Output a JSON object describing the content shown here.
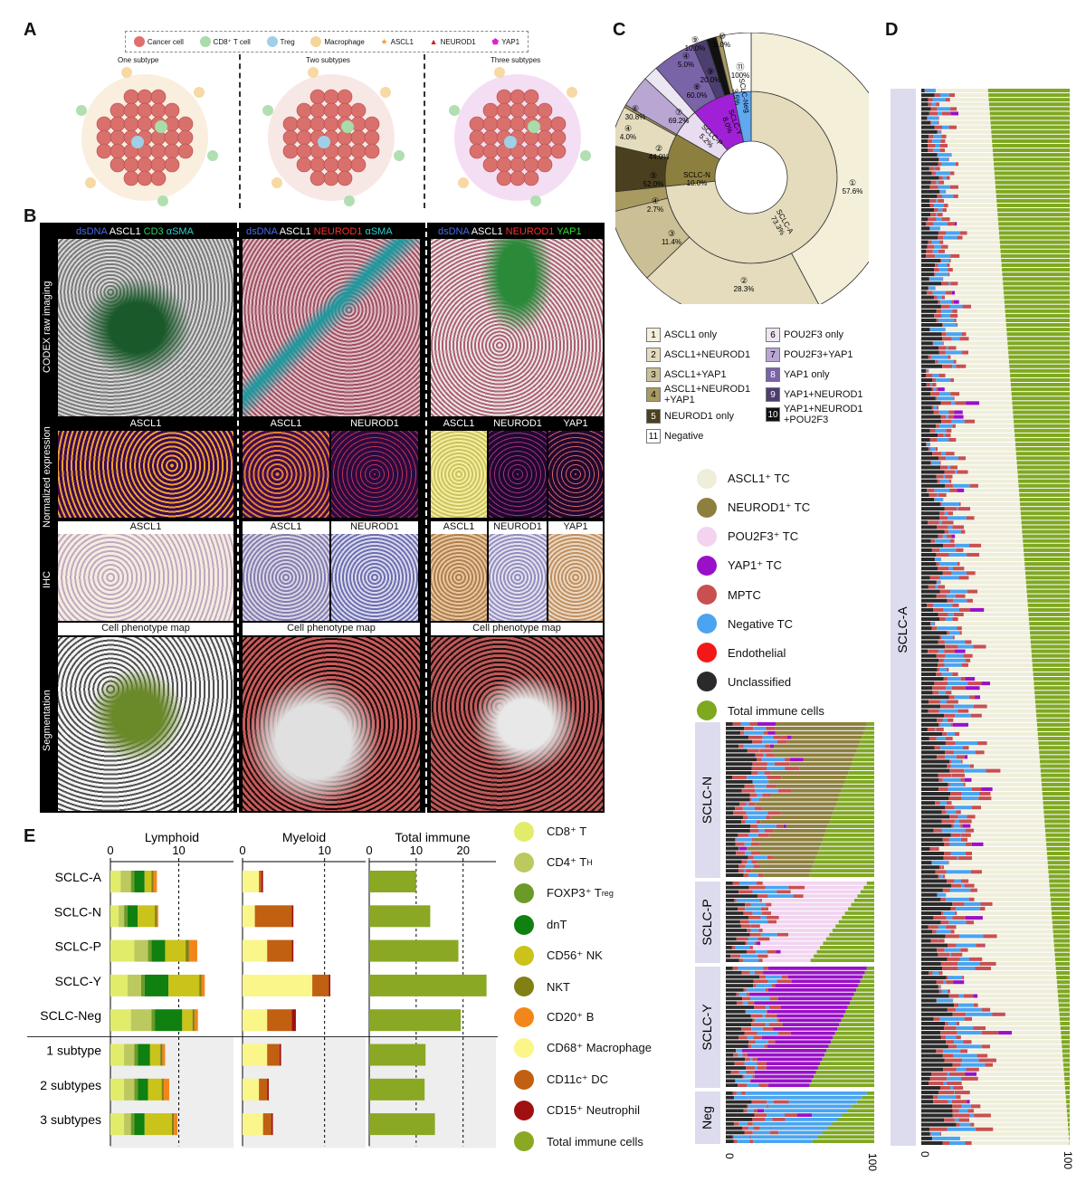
{
  "panel_labels": {
    "a": "A",
    "b": "B",
    "c": "C",
    "d": "D",
    "e": "E"
  },
  "panelA": {
    "legend": [
      {
        "label": "Cancer cell",
        "color": "#e0706f",
        "shape": "circle"
      },
      {
        "label": "CD8⁺ T cell",
        "color": "#a8dca8",
        "shape": "circle"
      },
      {
        "label": "Treg",
        "color": "#9fd0e8",
        "shape": "circle"
      },
      {
        "label": "Macrophage",
        "color": "#f6d59a",
        "shape": "circle"
      },
      {
        "label": "ASCL1",
        "color": "#f0a030",
        "shape": "star"
      },
      {
        "label": "NEUROD1",
        "color": "#d02020",
        "shape": "triangle"
      },
      {
        "label": "YAP1",
        "color": "#e020d0",
        "shape": "pentagon"
      }
    ],
    "titles": [
      "One subtype",
      "Two subtypes",
      "Three subtypes"
    ]
  },
  "panelB": {
    "col1_header": [
      "dsDNA",
      "ASCL1",
      "CD3",
      "αSMA"
    ],
    "col2_header": [
      "dsDNA",
      "ASCL1",
      "NEUROD1",
      "αSMA"
    ],
    "col3_header": [
      "dsDNA",
      "ASCL1",
      "NEUROD1",
      "YAP1"
    ],
    "header_colors": [
      "#4a6cf0",
      "#ffffff",
      "#30d060",
      "#30d0d0",
      "#ff3030",
      "#30e030"
    ],
    "row_labels": [
      "CODEX raw imaging",
      "Normalized expression",
      "IHC",
      "Segmentation"
    ],
    "col1_markers": [
      "ASCL1"
    ],
    "col2_markers": [
      "ASCL1",
      "NEUROD1"
    ],
    "col3_markers": [
      "ASCL1",
      "NEUROD1",
      "YAP1"
    ],
    "phenotype_map": "Cell phenotype map"
  },
  "panelC": {
    "inner": [
      {
        "label": "SCLC-A",
        "value": "73.3%"
      },
      {
        "label": "SCLC-N",
        "value": "10.0%"
      },
      {
        "label": "SCLC-P",
        "value": "5.2%"
      },
      {
        "label": "SCLC-Y",
        "value": "8.0%"
      },
      {
        "label": "SCLC-Neg",
        "value": "3.5%"
      }
    ],
    "outer_pct": [
      "57.6%",
      "28.3%",
      "11.4%",
      "2.7%",
      "52.0%",
      "44.0%",
      "4.0%",
      "69.2%",
      "60.0%",
      "20.0%",
      "100%",
      "30.8%",
      "10.0%",
      "5.0%",
      "5.0%"
    ],
    "outer_num": [
      "①",
      "②",
      "③",
      "④",
      "⑤",
      "②",
      "④",
      "⑦",
      "⑧",
      "⑨",
      "⑪",
      "⑥",
      "⑨",
      "⑩",
      "④"
    ],
    "legend": [
      {
        "num": "1",
        "label": "ASCL1 only",
        "color": "#f3efd9"
      },
      {
        "num": "2",
        "label": "ASCL1+NEUROD1",
        "color": "#e4dcbd"
      },
      {
        "num": "3",
        "label": "ASCL1+YAP1",
        "color": "#cbbf95"
      },
      {
        "num": "4",
        "label": "ASCL1+NEUROD1 +YAP1",
        "color": "#a89a60"
      },
      {
        "num": "5",
        "label": "NEUROD1 only",
        "color": "#4a3f1f"
      },
      {
        "num": "11",
        "label": "Negative",
        "color": "#ffffff"
      },
      {
        "num": "6",
        "label": "POU2F3 only",
        "color": "#ece6f2"
      },
      {
        "num": "7",
        "label": "POU2F3+YAP1",
        "color": "#b9a6d2"
      },
      {
        "num": "8",
        "label": "YAP1 only",
        "color": "#7a64a8"
      },
      {
        "num": "9",
        "label": "YAP1+NEUROD1",
        "color": "#4d3e70"
      },
      {
        "num": "10",
        "label": "YAP1+NEUROD1 +POU2F3",
        "color": "#111111"
      }
    ]
  },
  "tc_legend": [
    {
      "label": "ASCL1⁺ TC",
      "color": "#efeedb"
    },
    {
      "label": "NEUROD1⁺ TC",
      "color": "#8d7f3e"
    },
    {
      "label": "POU2F3⁺ TC",
      "color": "#f2d4f0"
    },
    {
      "label": "YAP1⁺ TC",
      "color": "#9a10c8"
    },
    {
      "label": "MPTC",
      "color": "#c85050"
    },
    {
      "label": "Negative TC",
      "color": "#4aa4f0"
    },
    {
      "label": "Endothelial",
      "color": "#f21818"
    },
    {
      "label": "Unclassified",
      "color": "#2a2a2a"
    },
    {
      "label": "Total immune cells",
      "color": "#7fa821"
    }
  ],
  "panelD": {
    "groups": [
      "SCLC-N",
      "SCLC-P",
      "SCLC-Y",
      "Neg"
    ],
    "main_group": "SCLC-A",
    "axis_min": "0",
    "axis_max": "100"
  },
  "chart_data": [
    {
      "type": "bar",
      "title": "Lymphoid",
      "orientation": "horizontal",
      "stacked": true,
      "categories": [
        "SCLC-A",
        "SCLC-N",
        "SCLC-P",
        "SCLC-Y",
        "SCLC-Neg",
        "1 subtype",
        "2 subtypes",
        "3 subtypes"
      ],
      "xlim": [
        0,
        18
      ],
      "ticks": [
        "0",
        "10"
      ],
      "reference_line": 10,
      "series": [
        {
          "name": "CD8⁺ T",
          "color": "#e1ec6a",
          "values": [
            1.5,
            1.2,
            3.5,
            2.5,
            3.0,
            2.0,
            2.0,
            2.0
          ]
        },
        {
          "name": "CD4⁺ T_H",
          "color": "#bcc95e",
          "values": [
            1.5,
            0.8,
            2.0,
            2.0,
            3.0,
            1.5,
            1.5,
            1.0
          ]
        },
        {
          "name": "FOXP3⁺ T_reg",
          "color": "#6c9a28",
          "values": [
            0.5,
            0.5,
            0.5,
            0.5,
            0.5,
            0.5,
            0.5,
            0.5
          ]
        },
        {
          "name": "dnT",
          "color": "#108010",
          "values": [
            1.5,
            1.5,
            2.0,
            3.5,
            4.0,
            1.8,
            1.5,
            1.5
          ]
        },
        {
          "name": "CD56⁺ NK",
          "color": "#c9c31a",
          "values": [
            1.0,
            2.5,
            3.0,
            4.5,
            1.5,
            1.5,
            2.0,
            4.0
          ]
        },
        {
          "name": "NKT",
          "color": "#808014",
          "values": [
            0.3,
            0.3,
            0.5,
            0.3,
            0.3,
            0.3,
            0.3,
            0.3
          ]
        },
        {
          "name": "CD20⁺ B",
          "color": "#f3861a",
          "values": [
            0.5,
            0.2,
            1.2,
            0.5,
            0.5,
            0.4,
            0.8,
            0.5
          ]
        }
      ]
    },
    {
      "type": "bar",
      "title": "Myeloid",
      "orientation": "horizontal",
      "stacked": true,
      "categories": [
        "SCLC-A",
        "SCLC-N",
        "SCLC-P",
        "SCLC-Y",
        "SCLC-Neg",
        "1 subtype",
        "2 subtypes",
        "3 subtypes"
      ],
      "xlim": [
        0,
        15
      ],
      "ticks": [
        "0",
        "10"
      ],
      "reference_line": 10,
      "series": [
        {
          "name": "CD68⁺ Macrophage",
          "color": "#fbf68a",
          "values": [
            2.0,
            1.5,
            3.0,
            8.5,
            3.0,
            3.0,
            2.0,
            2.5
          ]
        },
        {
          "name": "CD11c⁺ DC",
          "color": "#c06010",
          "values": [
            0.3,
            4.5,
            3.0,
            2.0,
            3.0,
            1.5,
            1.0,
            1.0
          ]
        },
        {
          "name": "CD15⁺ Neutrophil",
          "color": "#a01010",
          "values": [
            0.2,
            0.2,
            0.2,
            0.2,
            0.5,
            0.2,
            0.2,
            0.2
          ]
        }
      ]
    },
    {
      "type": "bar",
      "title": "Total immune",
      "orientation": "horizontal",
      "categories": [
        "SCLC-A",
        "SCLC-N",
        "SCLC-P",
        "SCLC-Y",
        "SCLC-Neg",
        "1 subtype",
        "2 subtypes",
        "3 subtypes"
      ],
      "xlim": [
        0,
        27
      ],
      "ticks": [
        "0",
        "10",
        "20"
      ],
      "reference_lines": [
        10,
        20
      ],
      "series": [
        {
          "name": "Total immune cells",
          "color": "#8aa824",
          "values": [
            10,
            13,
            19,
            25,
            19.5,
            12,
            11.8,
            14
          ]
        }
      ]
    }
  ],
  "e_legend": [
    {
      "label": "CD8⁺ T",
      "color": "#e1ec6a"
    },
    {
      "label": "CD4⁺ T",
      "sub": "H",
      "color": "#bcc95e"
    },
    {
      "label": "FOXP3⁺ T",
      "sub": "reg",
      "color": "#6c9a28"
    },
    {
      "label": "dnT",
      "color": "#108010"
    },
    {
      "label": "CD56⁺ NK",
      "color": "#c9c31a"
    },
    {
      "label": "NKT",
      "color": "#808014"
    },
    {
      "label": "CD20⁺ B",
      "color": "#f3861a"
    },
    {
      "label": "CD68⁺ Macrophage",
      "color": "#fbf68a"
    },
    {
      "label": "CD11c⁺ DC",
      "color": "#c06010"
    },
    {
      "label": "CD15⁺ Neutrophil",
      "color": "#a01010"
    },
    {
      "label": "Total immune cells",
      "color": "#8aa824"
    }
  ]
}
